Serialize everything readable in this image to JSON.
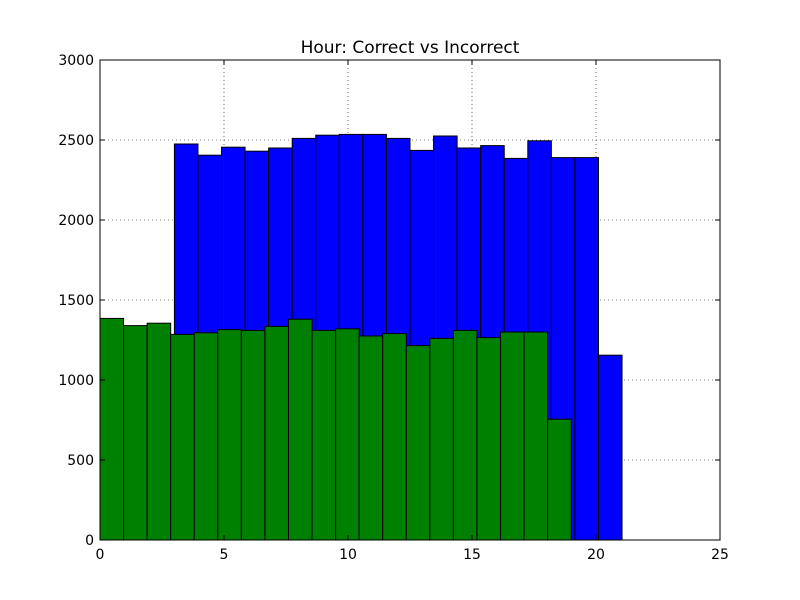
{
  "chart_data": {
    "type": "bar",
    "title": "Hour: Correct vs Incorrect",
    "xlabel": "",
    "ylabel": "",
    "xlim": [
      0,
      25
    ],
    "ylim": [
      0,
      3000
    ],
    "xticks": [
      0,
      5,
      10,
      15,
      20,
      25
    ],
    "yticks": [
      0,
      500,
      1000,
      1500,
      2000,
      2500,
      3000
    ],
    "grid": true,
    "bin_width": 0.95,
    "series": [
      {
        "name": "blue",
        "color": "#0000ff",
        "bins": [
          {
            "x": 3.0,
            "value": 2475
          },
          {
            "x": 3.95,
            "value": 2405
          },
          {
            "x": 4.9,
            "value": 2455
          },
          {
            "x": 5.85,
            "value": 2430
          },
          {
            "x": 6.8,
            "value": 2450
          },
          {
            "x": 7.75,
            "value": 2510
          },
          {
            "x": 8.7,
            "value": 2530
          },
          {
            "x": 9.65,
            "value": 2535
          },
          {
            "x": 10.6,
            "value": 2535
          },
          {
            "x": 11.55,
            "value": 2510
          },
          {
            "x": 12.5,
            "value": 2435
          },
          {
            "x": 13.45,
            "value": 2525
          },
          {
            "x": 14.4,
            "value": 2450
          },
          {
            "x": 15.35,
            "value": 2465
          },
          {
            "x": 16.3,
            "value": 2385
          },
          {
            "x": 17.25,
            "value": 2495
          },
          {
            "x": 18.2,
            "value": 2390
          },
          {
            "x": 19.15,
            "value": 2390
          },
          {
            "x": 20.1,
            "value": 1155
          }
        ]
      },
      {
        "name": "green",
        "color": "#008000",
        "bins": [
          {
            "x": 0.0,
            "value": 1385
          },
          {
            "x": 0.95,
            "value": 1340
          },
          {
            "x": 1.9,
            "value": 1355
          },
          {
            "x": 2.85,
            "value": 1285
          },
          {
            "x": 3.8,
            "value": 1295
          },
          {
            "x": 4.75,
            "value": 1315
          },
          {
            "x": 5.7,
            "value": 1310
          },
          {
            "x": 6.65,
            "value": 1335
          },
          {
            "x": 7.6,
            "value": 1380
          },
          {
            "x": 8.55,
            "value": 1310
          },
          {
            "x": 9.5,
            "value": 1320
          },
          {
            "x": 10.45,
            "value": 1275
          },
          {
            "x": 11.4,
            "value": 1290
          },
          {
            "x": 12.35,
            "value": 1215
          },
          {
            "x": 13.3,
            "value": 1260
          },
          {
            "x": 14.25,
            "value": 1310
          },
          {
            "x": 15.2,
            "value": 1265
          },
          {
            "x": 16.15,
            "value": 1300
          },
          {
            "x": 17.1,
            "value": 1300
          },
          {
            "x": 18.05,
            "value": 755
          }
        ]
      }
    ]
  }
}
